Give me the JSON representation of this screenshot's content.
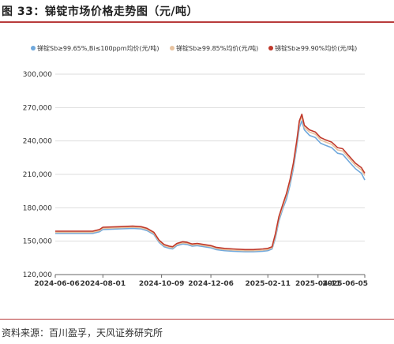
{
  "figure": {
    "title": "图 33：锑锭市场价格走势图（元/吨）",
    "source": "资料来源：百川盈孚，天风证券研究所"
  },
  "colors": {
    "accent": "#b83b3b",
    "series": [
      "#6fa8dc",
      "#e8c3a0",
      "#c0392b"
    ],
    "grid": "#dddddd",
    "axis": "#666666"
  },
  "chart_data": {
    "type": "line",
    "title": "",
    "xlabel": "",
    "ylabel": "",
    "ylim": [
      120000,
      300000
    ],
    "yticks": [
      120000,
      150000,
      180000,
      210000,
      240000,
      270000,
      300000
    ],
    "ytick_labels": [
      "120,000",
      "150,000",
      "180,000",
      "210,000",
      "240,000",
      "270,000",
      "300,000"
    ],
    "xlim": [
      "2024-06-06",
      "2025-06-05"
    ],
    "xticks": [
      "2024-06-06",
      "2024-08-01",
      "2024-10-09",
      "2024-12-06",
      "2025-02-11",
      "2025-04-11",
      "2025-06-05"
    ],
    "grid": "horizontal",
    "legend_position": "top",
    "series": [
      {
        "name": "锑锭Sb≥99.65%,Bi≤100ppm均价(元/吨)",
        "points": [
          [
            "2024-06-06",
            157000
          ],
          [
            "2024-07-01",
            157000
          ],
          [
            "2024-07-20",
            157000
          ],
          [
            "2024-07-28",
            158500
          ],
          [
            "2024-08-01",
            160500
          ],
          [
            "2024-08-20",
            161000
          ],
          [
            "2024-09-05",
            161500
          ],
          [
            "2024-09-15",
            161000
          ],
          [
            "2024-09-22",
            159500
          ],
          [
            "2024-09-30",
            156000
          ],
          [
            "2024-10-06",
            149000
          ],
          [
            "2024-10-12",
            145000
          ],
          [
            "2024-10-18",
            143500
          ],
          [
            "2024-10-22",
            143000
          ],
          [
            "2024-10-27",
            146000
          ],
          [
            "2024-11-03",
            147500
          ],
          [
            "2024-11-08",
            147000
          ],
          [
            "2024-11-14",
            145500
          ],
          [
            "2024-11-20",
            146000
          ],
          [
            "2024-11-28",
            145000
          ],
          [
            "2024-12-06",
            144000
          ],
          [
            "2024-12-12",
            142500
          ],
          [
            "2024-12-22",
            141500
          ],
          [
            "2025-01-01",
            141000
          ],
          [
            "2025-01-15",
            140500
          ],
          [
            "2025-01-25",
            140500
          ],
          [
            "2025-02-05",
            141000
          ],
          [
            "2025-02-11",
            141500
          ],
          [
            "2025-02-16",
            143000
          ],
          [
            "2025-02-20",
            153000
          ],
          [
            "2025-02-24",
            168000
          ],
          [
            "2025-03-01",
            180000
          ],
          [
            "2025-03-05",
            188000
          ],
          [
            "2025-03-09",
            200000
          ],
          [
            "2025-03-13",
            215000
          ],
          [
            "2025-03-17",
            235000
          ],
          [
            "2025-03-20",
            252000
          ],
          [
            "2025-03-23",
            258000
          ],
          [
            "2025-03-26",
            250000
          ],
          [
            "2025-04-01",
            245000
          ],
          [
            "2025-04-08",
            243000
          ],
          [
            "2025-04-14",
            238000
          ],
          [
            "2025-04-20",
            236000
          ],
          [
            "2025-04-27",
            234000
          ],
          [
            "2025-05-04",
            229000
          ],
          [
            "2025-05-10",
            228000
          ],
          [
            "2025-05-18",
            221000
          ],
          [
            "2025-05-25",
            215000
          ],
          [
            "2025-06-01",
            211000
          ],
          [
            "2025-06-05",
            205000
          ]
        ]
      },
      {
        "name": "锑锭Sb≥99.85%均价(元/吨)",
        "points": [
          [
            "2024-06-06",
            158000
          ],
          [
            "2024-07-01",
            158000
          ],
          [
            "2024-07-20",
            158000
          ],
          [
            "2024-07-28",
            159500
          ],
          [
            "2024-08-01",
            161500
          ],
          [
            "2024-08-20",
            162000
          ],
          [
            "2024-09-05",
            162500
          ],
          [
            "2024-09-15",
            162000
          ],
          [
            "2024-09-22",
            160500
          ],
          [
            "2024-09-30",
            157000
          ],
          [
            "2024-10-06",
            150000
          ],
          [
            "2024-10-12",
            146000
          ],
          [
            "2024-10-18",
            144500
          ],
          [
            "2024-10-22",
            144000
          ],
          [
            "2024-10-27",
            147000
          ],
          [
            "2024-11-03",
            148500
          ],
          [
            "2024-11-08",
            148000
          ],
          [
            "2024-11-14",
            146500
          ],
          [
            "2024-11-20",
            147000
          ],
          [
            "2024-11-28",
            146000
          ],
          [
            "2024-12-06",
            145000
          ],
          [
            "2024-12-12",
            143500
          ],
          [
            "2024-12-22",
            142500
          ],
          [
            "2025-01-01",
            142000
          ],
          [
            "2025-01-15",
            141500
          ],
          [
            "2025-01-25",
            141500
          ],
          [
            "2025-02-05",
            142000
          ],
          [
            "2025-02-11",
            142500
          ],
          [
            "2025-02-16",
            144000
          ],
          [
            "2025-02-20",
            155000
          ],
          [
            "2025-02-24",
            170000
          ],
          [
            "2025-03-01",
            182000
          ],
          [
            "2025-03-05",
            191000
          ],
          [
            "2025-03-09",
            203000
          ],
          [
            "2025-03-13",
            218000
          ],
          [
            "2025-03-17",
            238000
          ],
          [
            "2025-03-20",
            256000
          ],
          [
            "2025-03-23",
            262000
          ],
          [
            "2025-03-26",
            252000
          ],
          [
            "2025-04-01",
            248000
          ],
          [
            "2025-04-08",
            246000
          ],
          [
            "2025-04-14",
            241000
          ],
          [
            "2025-04-20",
            239000
          ],
          [
            "2025-04-27",
            237000
          ],
          [
            "2025-05-04",
            232000
          ],
          [
            "2025-05-10",
            231000
          ],
          [
            "2025-05-18",
            224000
          ],
          [
            "2025-05-25",
            218000
          ],
          [
            "2025-06-01",
            214000
          ],
          [
            "2025-06-05",
            209000
          ]
        ]
      },
      {
        "name": "锑锭Sb≥99.90%均价(元/吨)",
        "points": [
          [
            "2024-06-06",
            159000
          ],
          [
            "2024-07-01",
            159000
          ],
          [
            "2024-07-20",
            159000
          ],
          [
            "2024-07-28",
            160500
          ],
          [
            "2024-08-01",
            162500
          ],
          [
            "2024-08-20",
            163000
          ],
          [
            "2024-09-05",
            163500
          ],
          [
            "2024-09-15",
            163000
          ],
          [
            "2024-09-22",
            161500
          ],
          [
            "2024-09-30",
            158000
          ],
          [
            "2024-10-06",
            151000
          ],
          [
            "2024-10-12",
            147000
          ],
          [
            "2024-10-18",
            145500
          ],
          [
            "2024-10-22",
            145000
          ],
          [
            "2024-10-27",
            148000
          ],
          [
            "2024-11-03",
            149500
          ],
          [
            "2024-11-08",
            149000
          ],
          [
            "2024-11-14",
            147500
          ],
          [
            "2024-11-20",
            148000
          ],
          [
            "2024-11-28",
            147000
          ],
          [
            "2024-12-06",
            146000
          ],
          [
            "2024-12-12",
            144500
          ],
          [
            "2024-12-22",
            143500
          ],
          [
            "2025-01-01",
            143000
          ],
          [
            "2025-01-15",
            142500
          ],
          [
            "2025-01-25",
            142500
          ],
          [
            "2025-02-05",
            143000
          ],
          [
            "2025-02-11",
            143500
          ],
          [
            "2025-02-16",
            145000
          ],
          [
            "2025-02-20",
            157000
          ],
          [
            "2025-02-24",
            172000
          ],
          [
            "2025-03-01",
            184000
          ],
          [
            "2025-03-05",
            193000
          ],
          [
            "2025-03-09",
            205000
          ],
          [
            "2025-03-13",
            220000
          ],
          [
            "2025-03-17",
            240000
          ],
          [
            "2025-03-20",
            258000
          ],
          [
            "2025-03-23",
            264000
          ],
          [
            "2025-03-26",
            254000
          ],
          [
            "2025-04-01",
            250000
          ],
          [
            "2025-04-08",
            248000
          ],
          [
            "2025-04-14",
            243000
          ],
          [
            "2025-04-20",
            241000
          ],
          [
            "2025-04-27",
            239000
          ],
          [
            "2025-05-04",
            234000
          ],
          [
            "2025-05-10",
            233000
          ],
          [
            "2025-05-18",
            226000
          ],
          [
            "2025-05-25",
            220000
          ],
          [
            "2025-06-01",
            216000
          ],
          [
            "2025-06-05",
            211000
          ]
        ]
      }
    ]
  }
}
